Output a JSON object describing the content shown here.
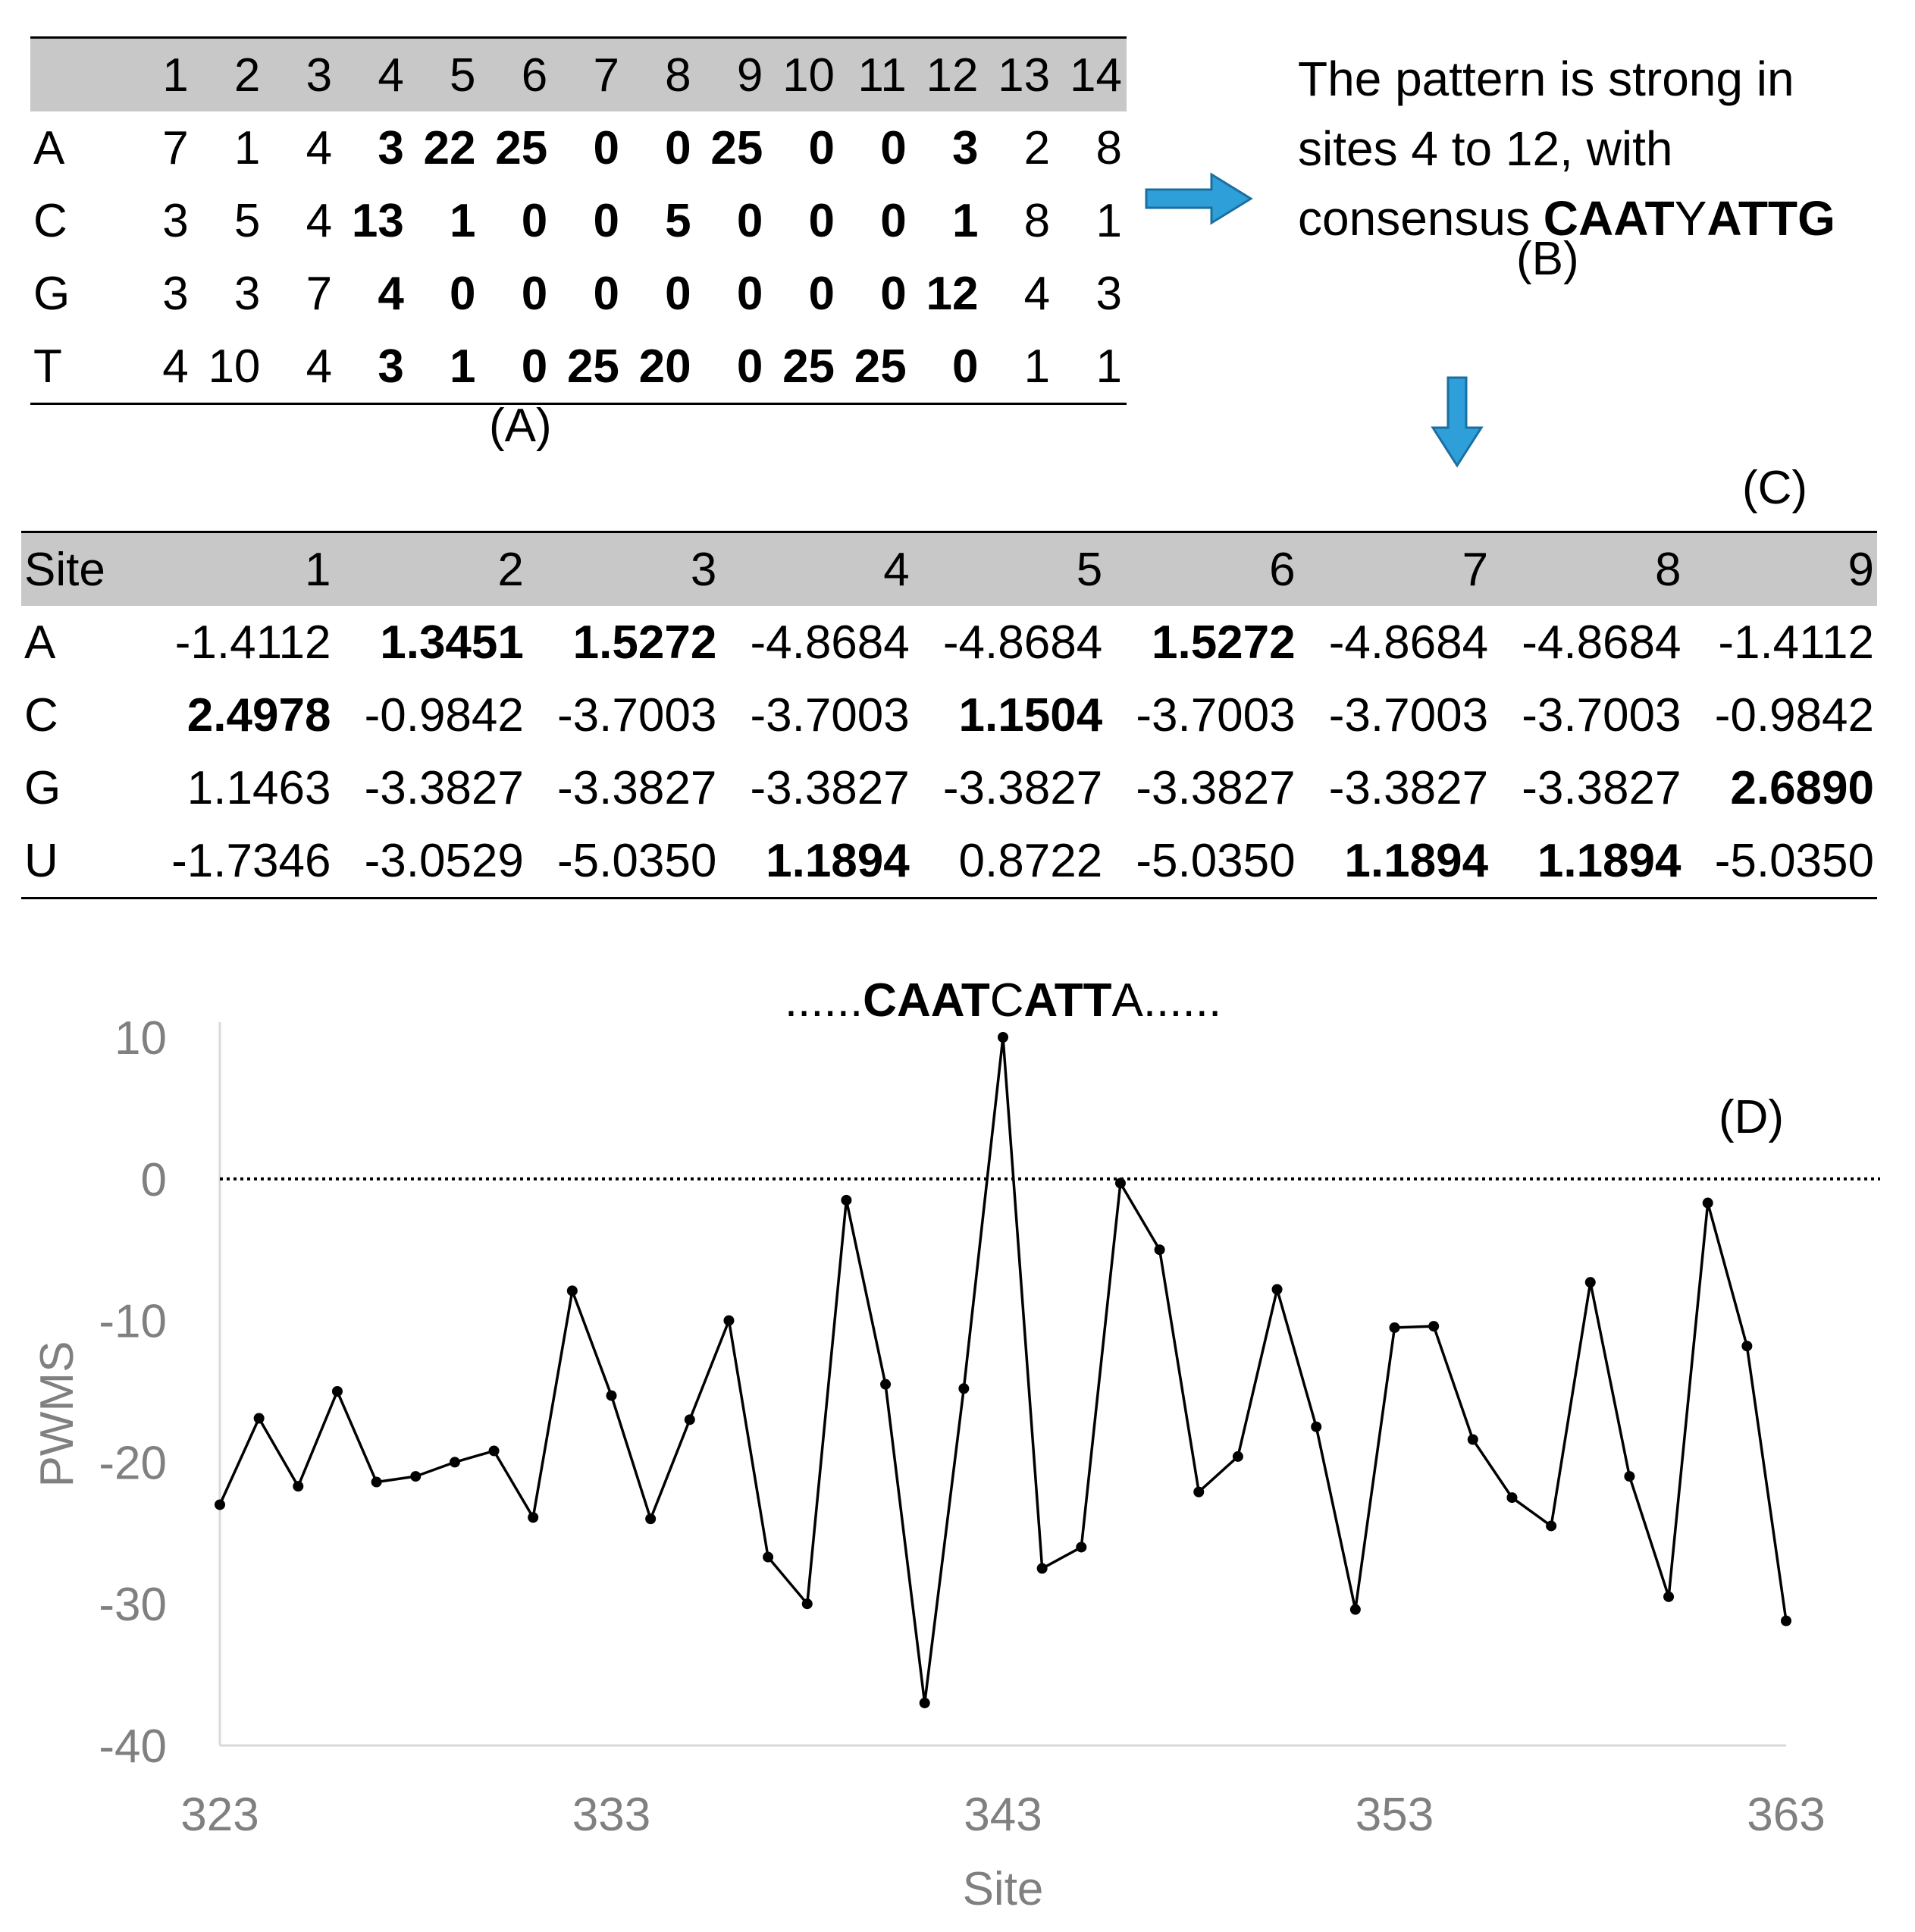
{
  "panel_a": {
    "header": [
      "",
      "1",
      "2",
      "3",
      "4",
      "5",
      "6",
      "7",
      "8",
      "9",
      "10",
      "11",
      "12",
      "13",
      "14"
    ],
    "rows": [
      {
        "label": "A",
        "values": [
          "7",
          "1",
          "4",
          "3",
          "22",
          "25",
          "0",
          "0",
          "25",
          "0",
          "0",
          "3",
          "2",
          "8"
        ]
      },
      {
        "label": "C",
        "values": [
          "3",
          "5",
          "4",
          "13",
          "1",
          "0",
          "0",
          "5",
          "0",
          "0",
          "0",
          "1",
          "8",
          "1"
        ]
      },
      {
        "label": "G",
        "values": [
          "3",
          "3",
          "7",
          "4",
          "0",
          "0",
          "0",
          "0",
          "0",
          "0",
          "0",
          "12",
          "4",
          "3"
        ]
      },
      {
        "label": "T",
        "values": [
          "4",
          "10",
          "4",
          "3",
          "1",
          "0",
          "25",
          "20",
          "0",
          "25",
          "25",
          "0",
          "1",
          "1"
        ]
      }
    ],
    "caption": "(A)"
  },
  "panel_b": {
    "line1": "The pattern is strong in",
    "line2": "sites 4 to 12, with",
    "line3_prefix": "consensus ",
    "consensus_part1": "CAAT",
    "consensus_part2": "Y",
    "consensus_part3": "ATTG",
    "caption": "(B)"
  },
  "panel_c": {
    "caption": "(C)",
    "header": [
      "Site",
      "1",
      "2",
      "3",
      "4",
      "5",
      "6",
      "7",
      "8",
      "9"
    ],
    "rows": [
      {
        "label": "A",
        "values": [
          "-1.4112",
          "1.3451",
          "1.5272",
          "-4.8684",
          "-4.8684",
          "1.5272",
          "-4.8684",
          "-4.8684",
          "-1.4112"
        ]
      },
      {
        "label": "C",
        "values": [
          "2.4978",
          "-0.9842",
          "-3.7003",
          "-3.7003",
          "1.1504",
          "-3.7003",
          "-3.7003",
          "-3.7003",
          "-0.9842"
        ]
      },
      {
        "label": "G",
        "values": [
          "1.1463",
          "-3.3827",
          "-3.3827",
          "-3.3827",
          "-3.3827",
          "-3.3827",
          "-3.3827",
          "-3.3827",
          "2.6890"
        ]
      },
      {
        "label": "U",
        "values": [
          "-1.7346",
          "-3.0529",
          "-5.0350",
          "1.1894",
          "0.8722",
          "-5.0350",
          "1.1894",
          "1.1894",
          "-5.0350"
        ]
      }
    ]
  },
  "chart_data": {
    "type": "line",
    "caption": "(D)",
    "xlabel": "Site",
    "ylabel": "PWMS",
    "xlim": [
      323,
      363
    ],
    "ylim": [
      -40,
      10
    ],
    "xticks": [
      323,
      333,
      343,
      353,
      363
    ],
    "yticks": [
      10,
      0,
      -10,
      -20,
      -30,
      -40
    ],
    "reference_line_y": 0,
    "annotation": {
      "x": 343,
      "prefix": "......",
      "seg1_bold": "CAAT",
      "seg2": "C",
      "seg3_bold": "ATT",
      "seg4": "A",
      "suffix": "......"
    },
    "series": [
      {
        "name": "PWMS",
        "x": [
          323,
          324,
          325,
          326,
          327,
          328,
          329,
          330,
          331,
          332,
          333,
          334,
          335,
          336,
          337,
          338,
          339,
          340,
          341,
          342,
          343,
          344,
          345,
          346,
          347,
          348,
          349,
          350,
          351,
          352,
          353,
          354,
          355,
          356,
          357,
          358,
          359,
          360,
          361,
          362,
          363
        ],
        "y": [
          -23.0,
          -16.9,
          -21.7,
          -15.0,
          -21.4,
          -21.0,
          -20.0,
          -19.2,
          -23.9,
          -7.9,
          -15.3,
          -24.0,
          -17.0,
          -10.0,
          -26.7,
          -30.0,
          -1.5,
          -14.5,
          -37.0,
          -14.8,
          10.0,
          -27.5,
          -26.0,
          -0.3,
          -5.0,
          -22.1,
          -19.6,
          -7.8,
          -17.5,
          -30.4,
          -10.5,
          -10.4,
          -18.4,
          -22.5,
          -24.5,
          -7.3,
          -21.0,
          -29.5,
          -1.7,
          -11.8,
          -31.2
        ]
      }
    ]
  }
}
